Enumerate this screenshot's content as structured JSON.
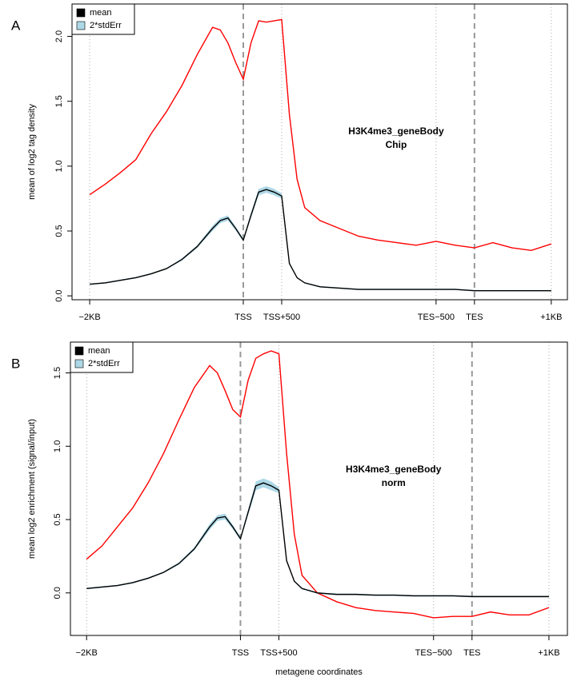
{
  "chart_data": [
    {
      "type": "line",
      "panel": "A",
      "ylabel": "mean of log2 tag density",
      "annotation": [
        "H3K4me3_geneBody",
        "Chip"
      ],
      "x": [
        -2000,
        -1800,
        -1600,
        -1400,
        -1200,
        -1000,
        -800,
        -600,
        -400,
        -300,
        -200,
        -100,
        0,
        100,
        200,
        300,
        400,
        500,
        600,
        700,
        800,
        1000,
        1250,
        1500,
        1750,
        2000,
        2250,
        2510,
        2760,
        3010,
        3250,
        3500,
        3750,
        4010
      ],
      "series": [
        {
          "name": "mean",
          "color": "#000000",
          "values": [
            0.09,
            0.1,
            0.12,
            0.14,
            0.17,
            0.21,
            0.28,
            0.38,
            0.52,
            0.58,
            0.6,
            0.52,
            0.43,
            0.62,
            0.8,
            0.82,
            0.8,
            0.77,
            0.25,
            0.14,
            0.1,
            0.07,
            0.06,
            0.05,
            0.05,
            0.05,
            0.05,
            0.05,
            0.05,
            0.04,
            0.04,
            0.04,
            0.04,
            0.04
          ]
        },
        {
          "color": "#ff0000",
          "values": [
            0.78,
            0.86,
            0.95,
            1.05,
            1.25,
            1.42,
            1.62,
            1.86,
            2.07,
            2.05,
            1.95,
            1.8,
            1.67,
            1.95,
            2.12,
            2.11,
            2.12,
            2.13,
            1.4,
            0.9,
            0.68,
            0.58,
            0.52,
            0.46,
            0.43,
            0.41,
            0.39,
            0.42,
            0.39,
            0.37,
            0.41,
            0.37,
            0.35,
            0.4
          ]
        }
      ],
      "band": {
        "name": "2*stdErr",
        "color": "#add8e6",
        "values": [
          0.005,
          0.005,
          0.005,
          0.005,
          0.005,
          0.005,
          0.008,
          0.01,
          0.02,
          0.02,
          0.02,
          0.015,
          0.012,
          0.02,
          0.025,
          0.025,
          0.025,
          0.02,
          0.01,
          0.005,
          0.005,
          0.005,
          0.005,
          0.005,
          0.005,
          0.005,
          0.005,
          0.005,
          0.005,
          0.005,
          0.005,
          0.005,
          0.005,
          0.005
        ]
      },
      "xlim": [
        -2230,
        4220
      ],
      "xticks": [
        {
          "value": -2000,
          "label": "−2KB",
          "line": "dotted"
        },
        {
          "value": 0,
          "label": "TSS",
          "line": "dashed"
        },
        {
          "value": 500,
          "label": "TSS+500",
          "line": "dotted"
        },
        {
          "value": 2510,
          "label": "TES−500",
          "line": "dotted"
        },
        {
          "value": 3010,
          "label": "TES",
          "line": "dashed"
        },
        {
          "value": 4010,
          "label": "+1KB",
          "line": "dotted"
        }
      ],
      "ylim": [
        -0.03,
        2.25
      ],
      "yticks": [
        {
          "value": 0,
          "label": "0.0"
        },
        0.5,
        {
          "value": 1,
          "label": "1.0"
        },
        1.5,
        {
          "value": 2,
          "label": "2.0"
        }
      ],
      "legend": "top-left"
    },
    {
      "type": "line",
      "panel": "B",
      "ylabel": "mean log2 enrichment (signal/input)",
      "xlabel": "metagene coordinates",
      "annotation": [
        "H3K4me3_geneBody",
        "norm"
      ],
      "x": [
        -2000,
        -1800,
        -1600,
        -1400,
        -1200,
        -1000,
        -800,
        -600,
        -400,
        -300,
        -200,
        -100,
        0,
        100,
        200,
        300,
        400,
        500,
        600,
        700,
        800,
        1000,
        1250,
        1500,
        1750,
        2000,
        2250,
        2510,
        2760,
        3010,
        3250,
        3500,
        3750,
        4010
      ],
      "series": [
        {
          "name": "mean",
          "color": "#000000",
          "values": [
            0.03,
            0.04,
            0.05,
            0.07,
            0.1,
            0.14,
            0.2,
            0.3,
            0.45,
            0.51,
            0.52,
            0.45,
            0.37,
            0.55,
            0.73,
            0.75,
            0.73,
            0.7,
            0.22,
            0.08,
            0.03,
            0.0,
            -0.01,
            -0.01,
            -0.015,
            -0.015,
            -0.02,
            -0.02,
            -0.02,
            -0.025,
            -0.025,
            -0.025,
            -0.025,
            -0.025
          ]
        },
        {
          "color": "#ff0000",
          "values": [
            0.23,
            0.32,
            0.45,
            0.58,
            0.75,
            0.95,
            1.18,
            1.4,
            1.55,
            1.5,
            1.38,
            1.25,
            1.2,
            1.45,
            1.6,
            1.63,
            1.65,
            1.63,
            0.95,
            0.4,
            0.12,
            0.0,
            -0.06,
            -0.1,
            -0.12,
            -0.13,
            -0.14,
            -0.17,
            -0.16,
            -0.16,
            -0.13,
            -0.15,
            -0.15,
            -0.1
          ]
        }
      ],
      "band": {
        "name": "2*stdErr",
        "color": "#add8e6",
        "values": [
          0.005,
          0.005,
          0.005,
          0.005,
          0.005,
          0.005,
          0.008,
          0.01,
          0.02,
          0.02,
          0.02,
          0.015,
          0.012,
          0.02,
          0.03,
          0.03,
          0.03,
          0.02,
          0.01,
          0.005,
          0.005,
          0.005,
          0.005,
          0.005,
          0.005,
          0.005,
          0.005,
          0.005,
          0.005,
          0.005,
          0.005,
          0.005,
          0.005,
          0.005
        ]
      },
      "xlim": [
        -2210,
        4250
      ],
      "xticks": [
        {
          "value": -2000,
          "label": "−2KB",
          "line": "dotted"
        },
        {
          "value": 0,
          "label": "TSS",
          "line": "dashed"
        },
        {
          "value": 500,
          "label": "TSS+500",
          "line": "dotted"
        },
        {
          "value": 2510,
          "label": "TES−500",
          "line": "dotted"
        },
        {
          "value": 3010,
          "label": "TES",
          "line": "dashed"
        },
        {
          "value": 4010,
          "label": "+1KB",
          "line": "dotted"
        }
      ],
      "ylim": [
        -0.29,
        1.71
      ],
      "yticks": [
        {
          "value": 0,
          "label": "0.0"
        },
        0.5,
        {
          "value": 1,
          "label": "1.0"
        },
        1.5
      ],
      "legend": "top-left"
    }
  ]
}
